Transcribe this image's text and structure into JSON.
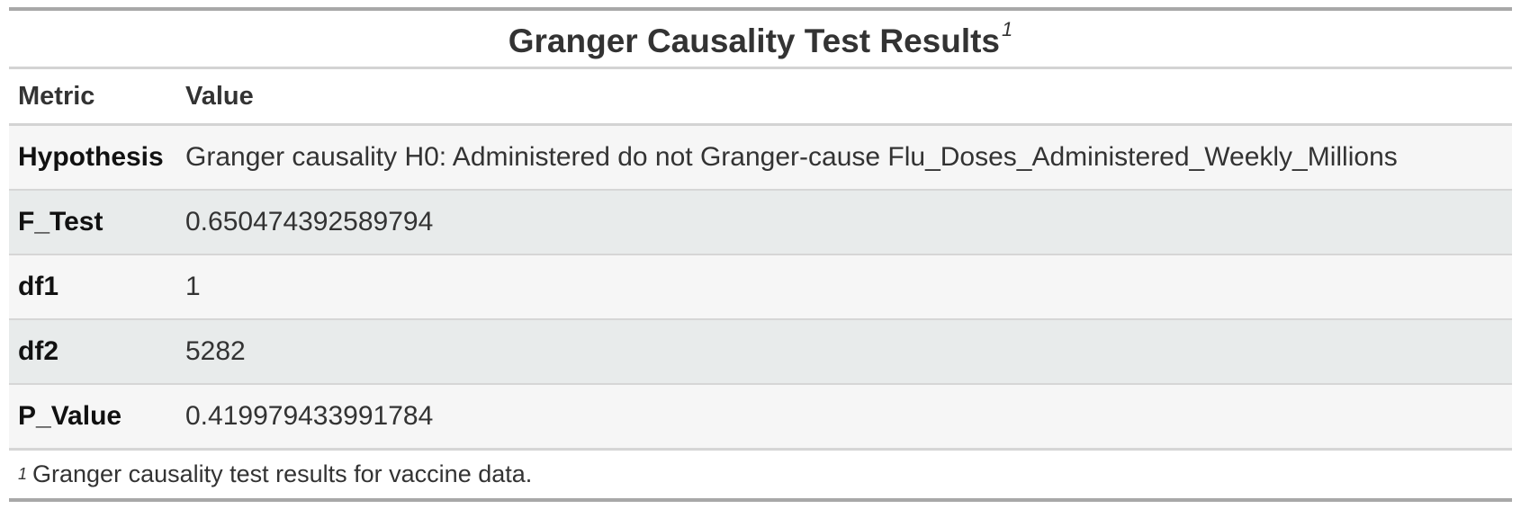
{
  "table": {
    "title": "Granger Causality Test Results",
    "title_footnote_mark": "1",
    "columns": [
      "Metric",
      "Value"
    ],
    "rows": [
      {
        "metric": "Hypothesis",
        "value": "Granger causality H0: Administered do not Granger-cause Flu_Doses_Administered_Weekly_Millions"
      },
      {
        "metric": "F_Test",
        "value": "0.650474392589794"
      },
      {
        "metric": "df1",
        "value": "1"
      },
      {
        "metric": "df2",
        "value": "5282"
      },
      {
        "metric": "P_Value",
        "value": "0.419979433991784"
      }
    ],
    "footnote_mark": "1",
    "footnote": "Granger causality test results for vaccine data."
  },
  "colors": {
    "rule": "#a8a8a8",
    "row_odd": "#f6f6f6",
    "row_even": "#e8ebeb"
  }
}
